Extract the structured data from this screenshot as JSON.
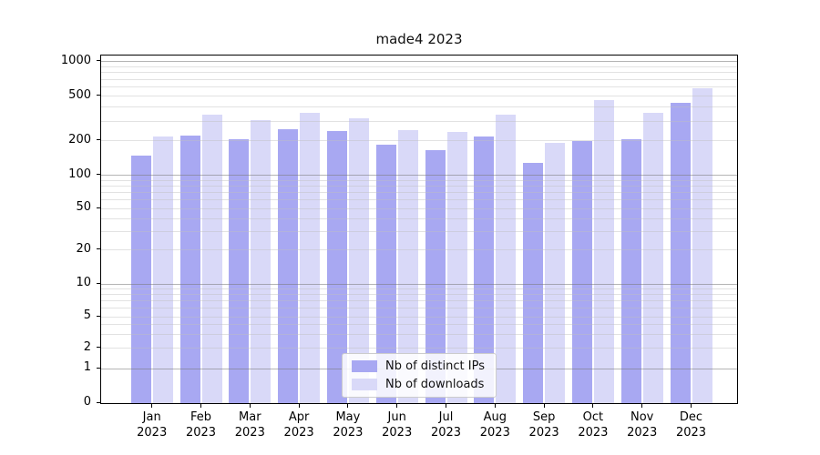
{
  "figure": {
    "title": "made4 2023"
  },
  "colors": {
    "distinct_ips": "#a8a8f2",
    "downloads": "#d9d9f8",
    "axis": "#000000",
    "background": "#ffffff"
  },
  "legend": {
    "items": [
      {
        "label": "Nb of distinct IPs",
        "color_key": "distinct_ips"
      },
      {
        "label": "Nb of downloads",
        "color_key": "downloads"
      }
    ]
  },
  "x_axis": {
    "year": "2023",
    "months": [
      "Jan",
      "Feb",
      "Mar",
      "Apr",
      "May",
      "Jun",
      "Jul",
      "Aug",
      "Sep",
      "Oct",
      "Nov",
      "Dec"
    ]
  },
  "y_axis": {
    "ticks": [
      0,
      1,
      2,
      5,
      10,
      20,
      50,
      100,
      200,
      500,
      1000
    ]
  },
  "chart_data": {
    "type": "bar",
    "title": "made4 2023",
    "categories": [
      "Jan 2023",
      "Feb 2023",
      "Mar 2023",
      "Apr 2023",
      "May 2023",
      "Jun 2023",
      "Jul 2023",
      "Aug 2023",
      "Sep 2023",
      "Oct 2023",
      "Nov 2023",
      "Dec 2023"
    ],
    "series": [
      {
        "name": "Nb of distinct IPs",
        "values": [
          150,
          225,
          206,
          255,
          245,
          184,
          165,
          217,
          129,
          200,
          208,
          440
        ]
      },
      {
        "name": "Nb of downloads",
        "values": [
          220,
          340,
          307,
          355,
          318,
          250,
          240,
          345,
          193,
          458,
          355,
          590
        ]
      }
    ],
    "xlabel": "",
    "ylabel": "",
    "y_scale": "symlog",
    "y_ticks": [
      0,
      1,
      2,
      5,
      10,
      20,
      50,
      100,
      200,
      500,
      1000
    ],
    "ylim": [
      0,
      1150
    ],
    "grid": true,
    "legend_position": "lower center"
  }
}
